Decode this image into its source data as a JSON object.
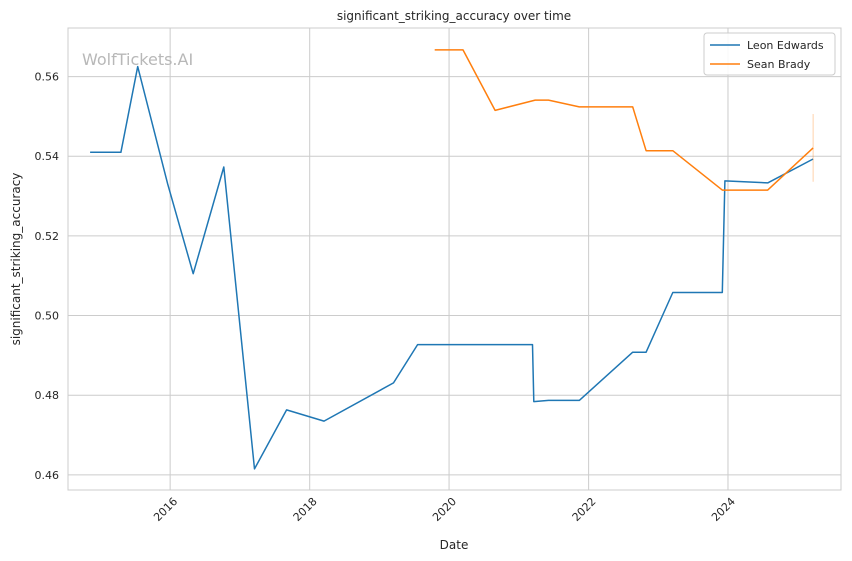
{
  "chart_data": {
    "type": "line",
    "title": "significant_striking_accuracy over time",
    "xlabel": "Date",
    "ylabel": "significant_striking_accuracy",
    "x_ticks": [
      "2016",
      "2018",
      "2020",
      "2022",
      "2024"
    ],
    "y_ticks": [
      "0.46",
      "0.48",
      "0.50",
      "0.52",
      "0.54",
      "0.56"
    ],
    "xlim": [
      "2014-07-15",
      "2025-08-15"
    ],
    "ylim": [
      0.4562,
      0.5722
    ],
    "grid": true,
    "legend_position": "top-right",
    "watermark": "WolfTickets.AI",
    "series": [
      {
        "name": "Leon Edwards",
        "color": "#1f77b4",
        "points": [
          [
            "2014-11-08",
            0.541
          ],
          [
            "2015-04-18",
            0.541
          ],
          [
            "2015-07-15",
            0.5625
          ],
          [
            "2015-12-19",
            0.533
          ],
          [
            "2016-05-01",
            0.5105
          ],
          [
            "2016-10-08",
            0.5373
          ],
          [
            "2017-03-18",
            0.4615
          ],
          [
            "2017-09-02",
            0.4763
          ],
          [
            "2018-03-17",
            0.4735
          ],
          [
            "2019-03-16",
            0.4831
          ],
          [
            "2019-07-20",
            0.4927
          ],
          [
            "2021-03-13",
            0.4927
          ],
          [
            "2021-03-20",
            0.4784
          ],
          [
            "2021-06-05",
            0.4787
          ],
          [
            "2021-11-13",
            0.4787
          ],
          [
            "2022-08-20",
            0.4908
          ],
          [
            "2022-10-29",
            0.4908
          ],
          [
            "2023-03-18",
            0.5058
          ],
          [
            "2023-12-02",
            0.5058
          ],
          [
            "2023-12-16",
            0.5338
          ],
          [
            "2024-07-27",
            0.5333
          ],
          [
            "2025-03-22",
            0.5393
          ]
        ]
      },
      {
        "name": "Sean Brady",
        "color": "#ff7f0e",
        "points": [
          [
            "2019-10-18",
            0.5667
          ],
          [
            "2020-03-14",
            0.5667
          ],
          [
            "2020-08-29",
            0.5515
          ],
          [
            "2021-03-27",
            0.5541
          ],
          [
            "2021-06-05",
            0.5541
          ],
          [
            "2021-11-13",
            0.5524
          ],
          [
            "2022-08-20",
            0.5524
          ],
          [
            "2022-10-29",
            0.5414
          ],
          [
            "2023-03-18",
            0.5414
          ],
          [
            "2023-12-02",
            0.5315
          ],
          [
            "2024-07-27",
            0.5315
          ],
          [
            "2025-03-22",
            0.5421
          ]
        ]
      }
    ]
  }
}
